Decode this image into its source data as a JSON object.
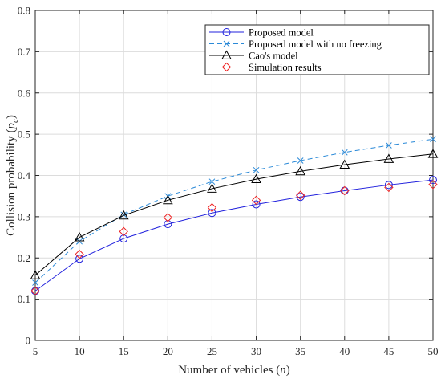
{
  "chart_data": {
    "type": "line",
    "xlabel": {
      "main": "Number of vehicles (",
      "var": "n",
      "close": ")"
    },
    "ylabel": {
      "main": "Collision probability (",
      "var": "p",
      "sub": "c",
      "close": ")"
    },
    "xlim": [
      5,
      50
    ],
    "ylim": [
      0,
      0.8
    ],
    "x_ticks": [
      5,
      10,
      15,
      20,
      25,
      30,
      35,
      40,
      45,
      50
    ],
    "y_ticks": [
      0,
      0.1,
      0.2,
      0.3,
      0.4,
      0.5,
      0.6,
      0.7,
      0.8
    ],
    "grid": true,
    "legend_position": "top-right",
    "series": [
      {
        "name": "Proposed model",
        "color": "#2222dd",
        "line": "solid",
        "marker": "circle",
        "x": [
          5,
          10,
          15,
          20,
          25,
          30,
          35,
          40,
          45,
          50
        ],
        "y": [
          0.12,
          0.198,
          0.247,
          0.282,
          0.309,
          0.33,
          0.348,
          0.363,
          0.377,
          0.389
        ]
      },
      {
        "name": "Proposed model with no freezing",
        "color": "#2b8ad8",
        "line": "dashed",
        "marker": "x",
        "x": [
          5,
          10,
          15,
          20,
          25,
          30,
          35,
          40,
          45,
          50
        ],
        "y": [
          0.14,
          0.24,
          0.305,
          0.35,
          0.385,
          0.413,
          0.436,
          0.456,
          0.473,
          0.488
        ]
      },
      {
        "name": "Cao's model",
        "color": "#000000",
        "line": "solid",
        "marker": "triangle",
        "x": [
          5,
          10,
          15,
          20,
          25,
          30,
          35,
          40,
          45,
          50
        ],
        "y": [
          0.158,
          0.25,
          0.303,
          0.34,
          0.368,
          0.391,
          0.41,
          0.426,
          0.44,
          0.452
        ]
      },
      {
        "name": "Simulation results",
        "color": "#ee2222",
        "line": "none",
        "marker": "diamond",
        "x": [
          5,
          10,
          15,
          20,
          25,
          30,
          35,
          40,
          45,
          50
        ],
        "y": [
          0.12,
          0.209,
          0.264,
          0.298,
          0.322,
          0.34,
          0.352,
          0.363,
          0.371,
          0.378
        ]
      }
    ]
  }
}
